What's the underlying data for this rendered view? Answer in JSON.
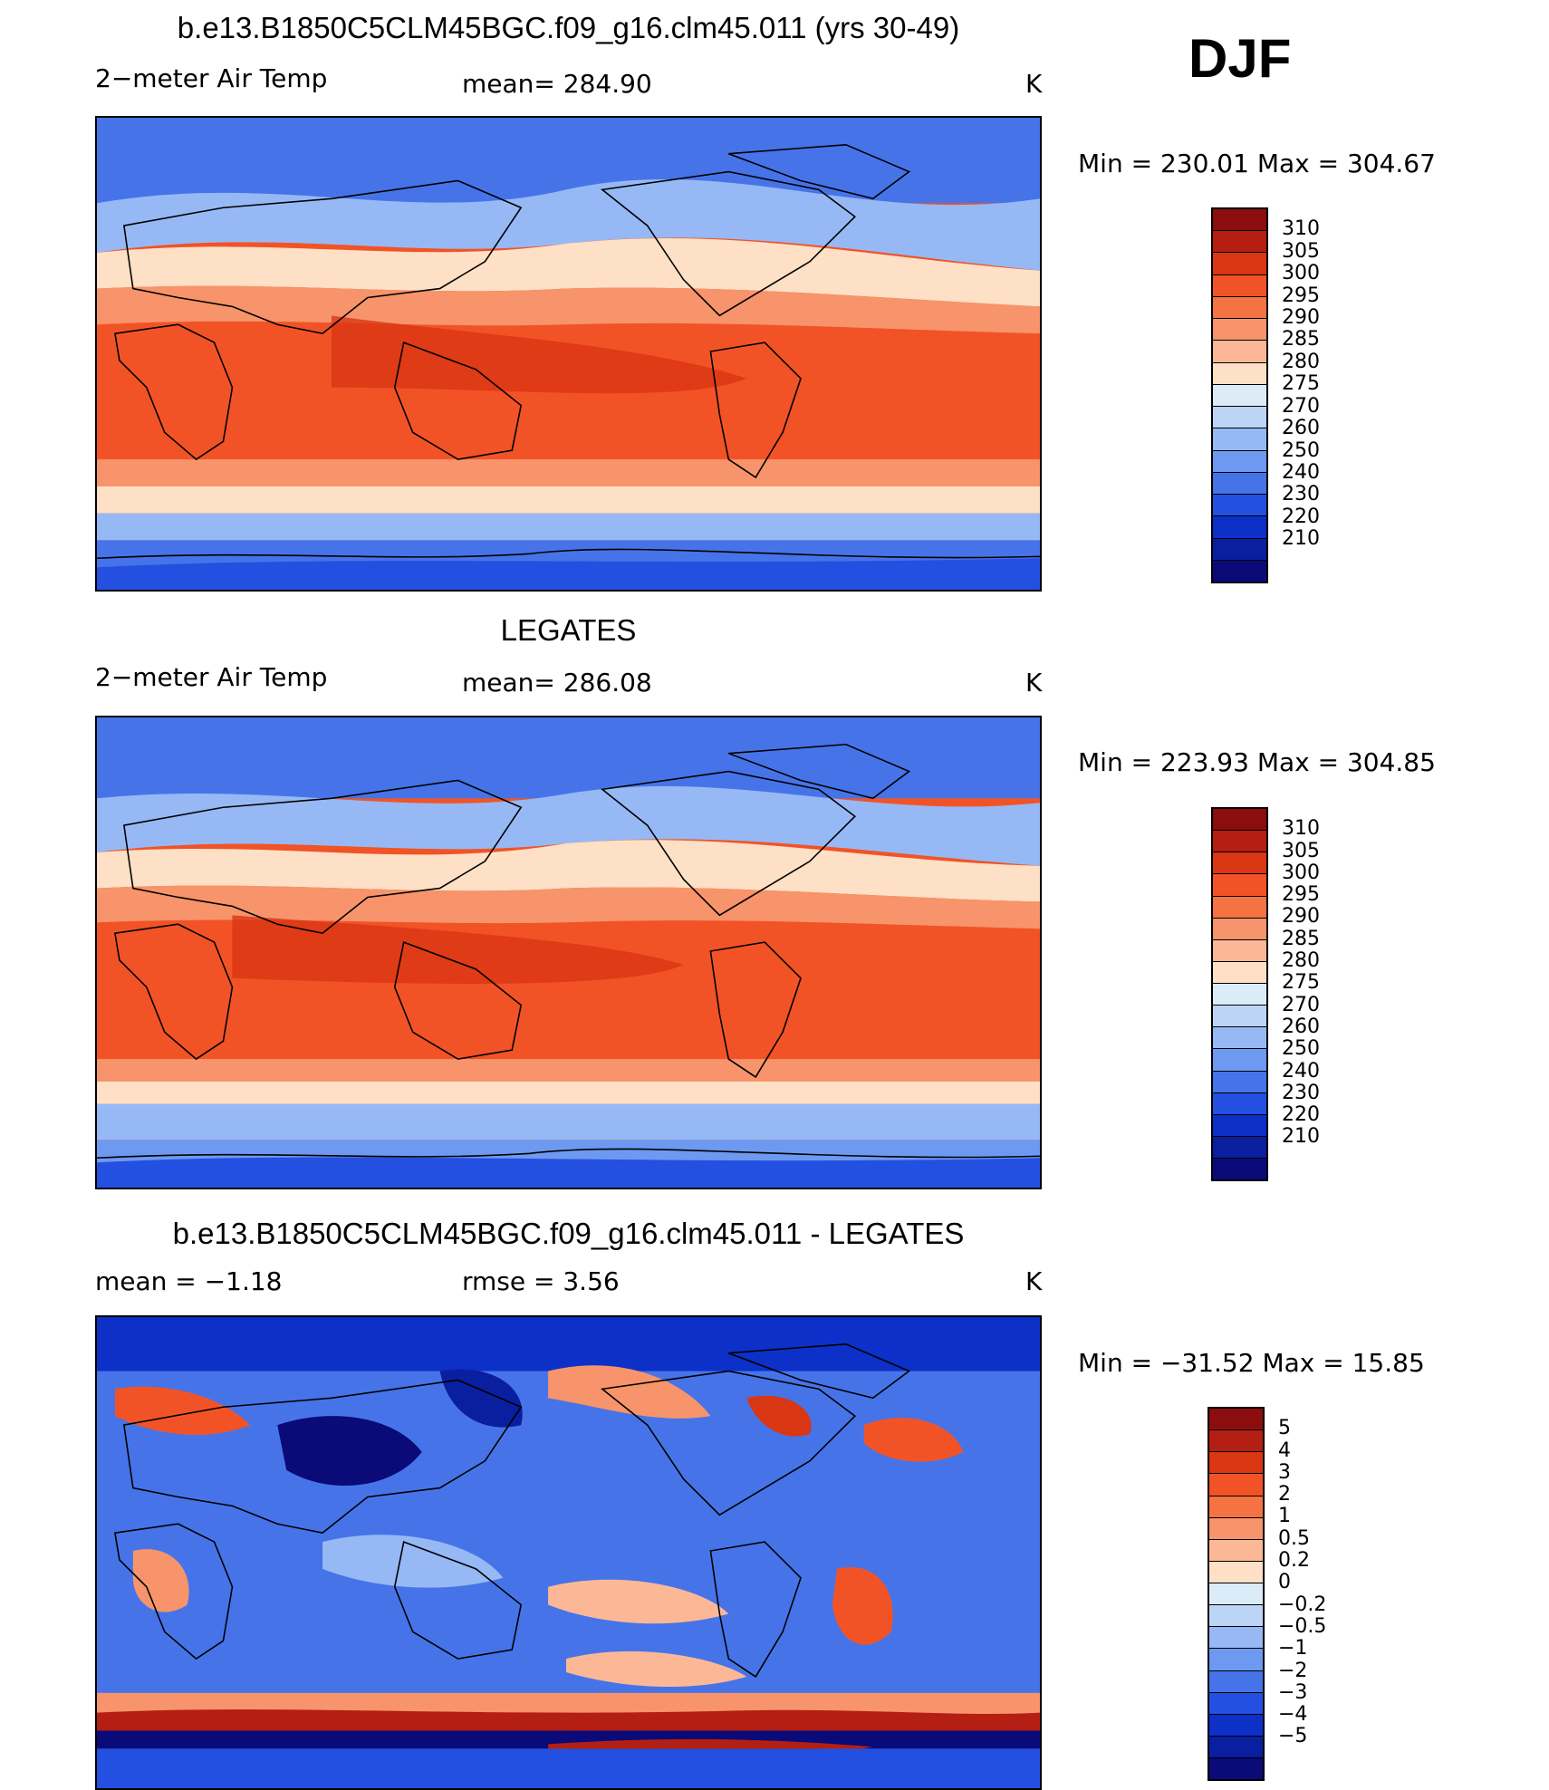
{
  "season": "DJF",
  "panels": [
    {
      "title": "b.e13.B1850C5CLM45BGC.f09_g16.clm45.011 (yrs 30-49)",
      "variable": "2−meter Air Temp",
      "stat1": "mean= 284.90",
      "units": "K",
      "minmax": "Min  =  230.01  Max  =  304.67",
      "colors": [
        "#8c0d0d",
        "#b51e12",
        "#d93614",
        "#f25326",
        "#f57342",
        "#f7946b",
        "#fcb896",
        "#fde0c5",
        "#dcebf8",
        "#bcd5f7",
        "#96b9f5",
        "#6e99f0",
        "#4674e8",
        "#2350e0",
        "#0d30c8",
        "#0a1ea0",
        "#0a0a78"
      ],
      "ticks": [
        "310",
        "305",
        "300",
        "295",
        "290",
        "285",
        "280",
        "275",
        "270",
        "260",
        "250",
        "240",
        "230",
        "220",
        "210"
      ]
    },
    {
      "title": "LEGATES",
      "variable": "2−meter Air Temp",
      "stat1": "mean= 286.08",
      "units": "K",
      "minmax": "Min  =  223.93  Max  =  304.85",
      "colors": [
        "#8c0d0d",
        "#b51e12",
        "#d93614",
        "#f25326",
        "#f57342",
        "#f7946b",
        "#fcb896",
        "#fde0c5",
        "#dcebf8",
        "#bcd5f7",
        "#96b9f5",
        "#6e99f0",
        "#4674e8",
        "#2350e0",
        "#0d30c8",
        "#0a1ea0",
        "#0a0a78"
      ],
      "ticks": [
        "310",
        "305",
        "300",
        "295",
        "290",
        "285",
        "280",
        "275",
        "270",
        "260",
        "250",
        "240",
        "230",
        "220",
        "210"
      ]
    },
    {
      "title": "b.e13.B1850C5CLM45BGC.f09_g16.clm45.011 - LEGATES",
      "variable": "mean  =    −1.18",
      "stat1": "rmse  =     3.56",
      "units": "K",
      "minmax": "Min  =  −31.52  Max  =    15.85",
      "colors": [
        "#8c0d0d",
        "#b51e12",
        "#d93614",
        "#f25326",
        "#f57342",
        "#f7946b",
        "#fcb896",
        "#fde0c5",
        "#dcebf8",
        "#bcd5f7",
        "#96b9f5",
        "#6e99f0",
        "#4674e8",
        "#2350e0",
        "#0d30c8",
        "#0a1ea0",
        "#0a0a78"
      ],
      "ticks": [
        "5",
        "4",
        "3",
        "2",
        "1",
        "0.5",
        "0.2",
        "0",
        "−0.2",
        "−0.5",
        "−1",
        "−2",
        "−3",
        "−4",
        "−5"
      ]
    }
  ],
  "map_colors": {
    "deep_blue": "#0d30c8",
    "mid_blue": "#4674e8",
    "light_blue": "#96b9f5",
    "pale": "#fde0c5",
    "peach": "#f7946b",
    "orange": "#f25326",
    "dark_red": "#b51e12",
    "coast": "#000000"
  }
}
